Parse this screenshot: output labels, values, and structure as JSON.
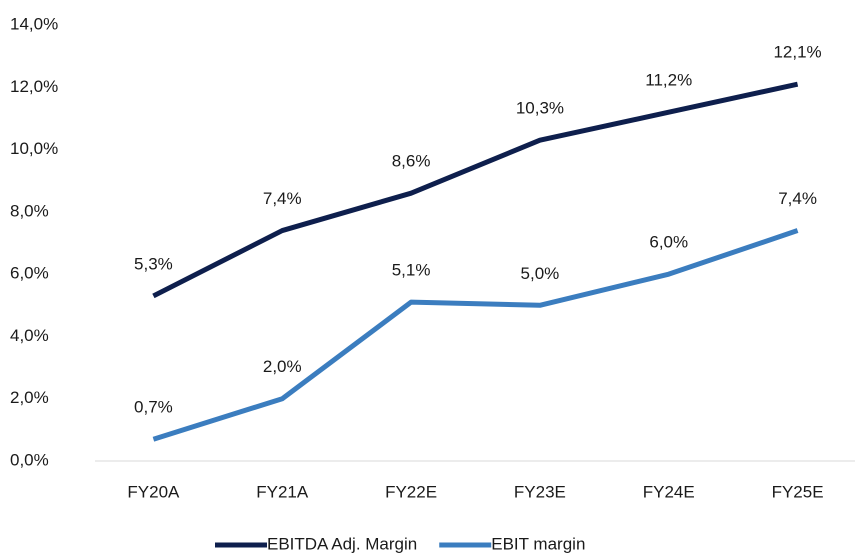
{
  "chart_data": {
    "type": "line",
    "categories": [
      "FY20A",
      "FY21A",
      "FY22E",
      "FY23E",
      "FY24E",
      "FY25E"
    ],
    "series": [
      {
        "name": "EBITDA Adj. Margin",
        "color": "#0e1f4d",
        "values": [
          5.3,
          7.4,
          8.6,
          10.3,
          11.2,
          12.1
        ],
        "value_labels": [
          "5,3%",
          "7,4%",
          "8,6%",
          "10,3%",
          "11,2%",
          "12,1%"
        ]
      },
      {
        "name": "EBIT margin",
        "color": "#3b7dbf",
        "values": [
          0.7,
          2.0,
          5.1,
          5.0,
          6.0,
          7.4
        ],
        "value_labels": [
          "0,7%",
          "2,0%",
          "5,1%",
          "5,0%",
          "6,0%",
          "7,4%"
        ]
      }
    ],
    "ylim": [
      0,
      14
    ],
    "yticks": [
      {
        "value": 0,
        "label": "0,0%"
      },
      {
        "value": 2,
        "label": "2,0%"
      },
      {
        "value": 4,
        "label": "4,0%"
      },
      {
        "value": 6,
        "label": "6,0%"
      },
      {
        "value": 8,
        "label": "8,0%"
      },
      {
        "value": 10,
        "label": "10,0%"
      },
      {
        "value": 12,
        "label": "12,0%"
      },
      {
        "value": 14,
        "label": "14,0%"
      }
    ],
    "grid": false,
    "legend": "bottom"
  }
}
